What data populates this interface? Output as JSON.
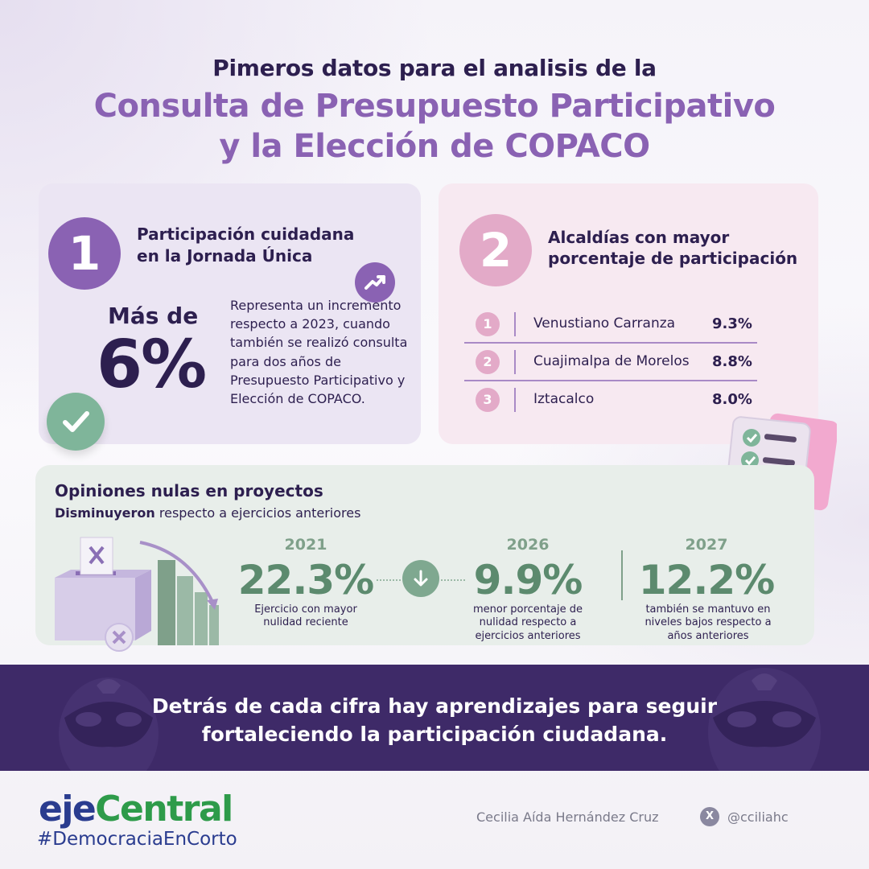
{
  "header": {
    "line1": "Pimeros datos para el analisis de la",
    "line2": "Consulta de Presupuesto Participativo",
    "line3": "y la Elección de COPACO"
  },
  "card1": {
    "number": "1",
    "heading_1": "Participación cuidadana",
    "heading_2": "en la Jornada Única",
    "mas_de": "Más de",
    "value": "6%",
    "description": "Representa un incremento respecto a 2023, cuando también se realizó consulta para dos años de Presupuesto Participativo y Elección de COPACO.",
    "icons": [
      "trend-up-icon",
      "check-icon"
    ]
  },
  "card2": {
    "number": "2",
    "heading_1": "Alcaldías con mayor",
    "heading_2": "porcentaje de participación",
    "ranking": [
      {
        "rank": "1",
        "name": "Venustiano Carranza",
        "value": "9.3%"
      },
      {
        "rank": "2",
        "name": "Cuajimalpa de Morelos",
        "value": "8.8%"
      },
      {
        "rank": "3",
        "name": "Iztacalco",
        "value": "8.0%"
      }
    ]
  },
  "card3": {
    "title": "Opiniones nulas en proyectos",
    "subtitle_bold": "Disminuyeron",
    "subtitle_rest": " respecto a ejercicios anteriores",
    "stats": [
      {
        "year": "2021",
        "value": "22.3%",
        "desc_1": "Ejercicio con mayor",
        "desc_2": "nulidad reciente",
        "desc_3": ""
      },
      {
        "year": "2026",
        "value": "9.9%",
        "desc_1": "menor porcentaje de",
        "desc_2": "nulidad respecto a",
        "desc_3": "ejercicios anteriores"
      },
      {
        "year": "2027",
        "value": "12.2%",
        "desc_1": "también se mantuvo en",
        "desc_2": "niveles bajos respecto a",
        "desc_3": "años anteriores"
      }
    ]
  },
  "banner": {
    "line1": "Detrás de cada cifra hay aprendizajes para seguir",
    "line2": "fortaleciendo la participación ciudadana."
  },
  "footer": {
    "logo_part1": "eje",
    "logo_part2": "Central",
    "hashtag": "#DemocraciaEnCorto",
    "author": "Cecilia Aída Hernández Cruz",
    "x_glyph": "X",
    "handle": "@cciliahc"
  },
  "colors": {
    "primary_purple": "#8a62b3",
    "dark_navy": "#2d1f4f",
    "pink": "#e3aac8",
    "green": "#5c8a6e",
    "banner": "#3e2a68"
  }
}
